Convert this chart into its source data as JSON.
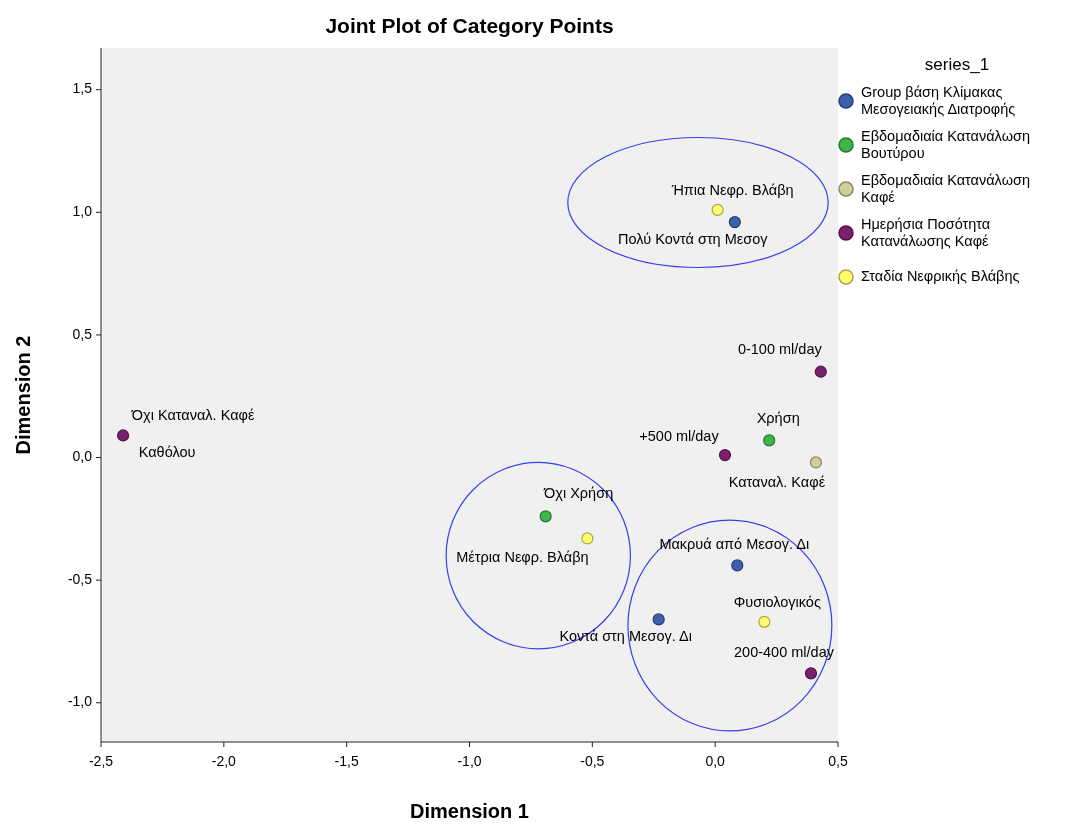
{
  "chart_data": {
    "type": "scatter",
    "title": "Joint Plot of Category Points",
    "xlabel": "Dimension 1",
    "ylabel": "Dimension 2",
    "legend_title": "series_1",
    "legend": "right",
    "marker": "circle",
    "grid": false,
    "xlim": [
      -2.5,
      0.5
    ],
    "ylim": [
      -1.16,
      1.67
    ],
    "xticks": [
      {
        "value": -2.5,
        "label": "-2,5"
      },
      {
        "value": -2,
        "label": "-2,0"
      },
      {
        "value": -1.5,
        "label": "-1,5"
      },
      {
        "value": -1,
        "label": "-1,0"
      },
      {
        "value": -0.5,
        "label": "-0,5"
      },
      {
        "value": 0,
        "label": "0,0"
      },
      {
        "value": 0.5,
        "label": "0,5"
      }
    ],
    "yticks": [
      {
        "value": -1,
        "label": "-1,0"
      },
      {
        "value": -0.5,
        "label": "-0,5"
      },
      {
        "value": 0,
        "label": "0,0"
      },
      {
        "value": 0.5,
        "label": "0,5"
      },
      {
        "value": 1,
        "label": "1,0"
      },
      {
        "value": 1.5,
        "label": "1,5"
      }
    ],
    "series": [
      {
        "name": "Group βάση Κλίμακας Μεσογειακής Διατροφής",
        "color": "#3e5fad",
        "x": [
          0.08,
          0.09,
          -0.23
        ],
        "values": [
          0.96,
          -0.44,
          -0.66
        ]
      },
      {
        "name": "Εβδομαδιαία Κατανάλωση Βουτύρου",
        "color": "#3db54a",
        "x": [
          0.22,
          -0.69
        ],
        "values": [
          0.07,
          -0.24
        ]
      },
      {
        "name": "Εβδομαδιαία Κατανάλωση Καφέ",
        "color": "#cfcf9a",
        "x": [
          0.41
        ],
        "values": [
          -0.02
        ]
      },
      {
        "name": "Ημερήσια Ποσότητα Κατανάλωσης Καφέ",
        "color": "#7b1f6e",
        "x": [
          0.43,
          0.04,
          0.39,
          -2.41
        ],
        "values": [
          0.35,
          0.01,
          -0.88,
          0.09
        ]
      },
      {
        "name": "Σταδία Νεφρικής Βλάβης",
        "color": "#ffff6e",
        "x": [
          0.01,
          -0.52,
          0.2
        ],
        "values": [
          1.01,
          -0.33,
          -0.67
        ]
      }
    ],
    "annotations": [
      {
        "text": "Πολύ Κοντά στη Μεσογ",
        "x": 0.08,
        "y": 0.96
      },
      {
        "text": "Μακρυά από Μεσογ. Δι",
        "x": 0.09,
        "y": -0.44
      },
      {
        "text": "Κοντά στη  Μεσογ. Δι",
        "x": -0.23,
        "y": -0.66
      },
      {
        "text": "Χρήση",
        "x": 0.22,
        "y": 0.07
      },
      {
        "text": "Όχι Χρήση",
        "x": -0.69,
        "y": -0.24
      },
      {
        "text": "Καταναλ. Καφέ",
        "x": 0.41,
        "y": -0.02
      },
      {
        "text": "0-100 ml/day",
        "x": 0.43,
        "y": 0.35
      },
      {
        "text": "+500 ml/day",
        "x": 0.04,
        "y": 0.01
      },
      {
        "text": "200-400 ml/day",
        "x": 0.39,
        "y": -0.88
      },
      {
        "text": "Όχι Καταναλ. Καφέ",
        "x": -2.41,
        "y": 0.09
      },
      {
        "text": "Καθόλου",
        "x": -2.41,
        "y": 0.09
      },
      {
        "text": "Ήπια Νεφρ. Βλάβη",
        "x": 0.01,
        "y": 1.01
      },
      {
        "text": "Μέτρια Νεφρ. Βλάβη",
        "x": -0.52,
        "y": -0.33
      },
      {
        "text": "Φυσιολογικός",
        "x": 0.2,
        "y": -0.67
      }
    ]
  }
}
